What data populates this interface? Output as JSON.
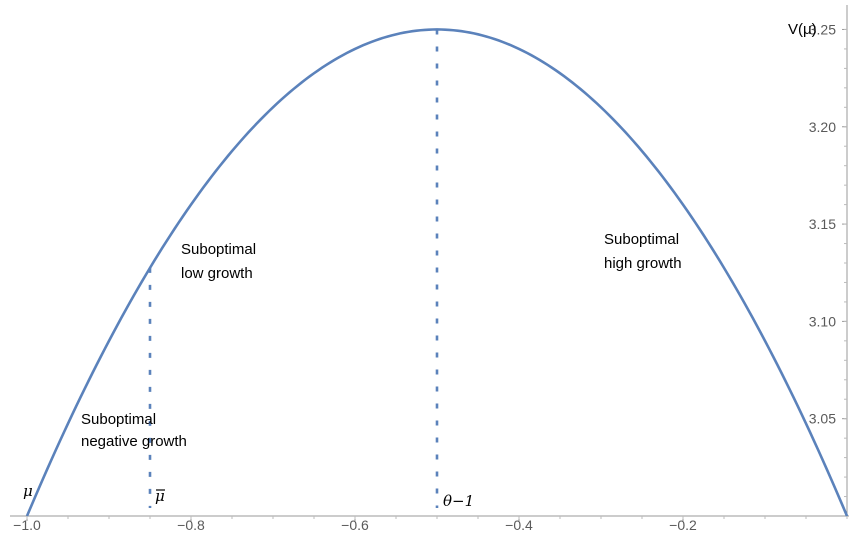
{
  "chart_data": {
    "type": "line",
    "title": "",
    "xlabel": "",
    "ylabel": "V(μ)",
    "xlim": [
      -1.0,
      0.0
    ],
    "ylim": [
      3.0,
      3.26
    ],
    "grid": false,
    "x_ticks": [
      -1.0,
      -0.8,
      -0.6,
      -0.4,
      -0.2
    ],
    "x_tick_labels": [
      "−1.0",
      "−0.8",
      "−0.6",
      "−0.4",
      "−0.2"
    ],
    "y_ticks": [
      3.05,
      3.1,
      3.15,
      3.2,
      3.25
    ],
    "y_tick_labels": [
      "3.05",
      "3.10",
      "3.15",
      "3.20",
      "3.25"
    ],
    "series": [
      {
        "curve": "parabola",
        "color": "#5b82bb",
        "x": [
          -1.0,
          -0.9,
          -0.8,
          -0.7,
          -0.6,
          -0.5,
          -0.4,
          -0.3,
          -0.2,
          -0.1,
          0.0
        ],
        "y": [
          3.0,
          3.09,
          3.16,
          3.21,
          3.24,
          3.25,
          3.24,
          3.21,
          3.16,
          3.09,
          3.0
        ]
      }
    ],
    "vlines": [
      {
        "x": -0.85,
        "y_top": 3.1275,
        "style": "dotted",
        "color": "#5b82bb"
      },
      {
        "x": -0.5,
        "y_top": 3.25,
        "style": "dotted",
        "color": "#5b82bb"
      }
    ],
    "annotations": {
      "mu_low": "μ",
      "mu_bar": "μ",
      "theta": "θ−1",
      "low_growth_1": "Suboptimal",
      "low_growth_2": "low growth",
      "high_growth_1": "Suboptimal",
      "high_growth_2": "high growth",
      "neg_growth_1": "Suboptimal",
      "neg_growth_2": "negative growth"
    }
  }
}
